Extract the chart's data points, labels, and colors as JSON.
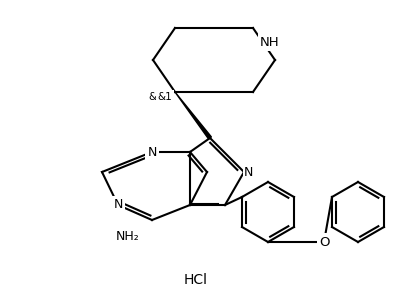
{
  "title": "",
  "background_color": "#ffffff",
  "line_color": "#000000",
  "line_width": 1.5,
  "font_size": 9,
  "hcl_text": "HCl",
  "nh_text": "NH",
  "n_text": "N",
  "nh2_text": "NH₂",
  "o_text": "O",
  "and1_text": "&1",
  "figsize": [
    3.93,
    3.08
  ],
  "dpi": 100
}
